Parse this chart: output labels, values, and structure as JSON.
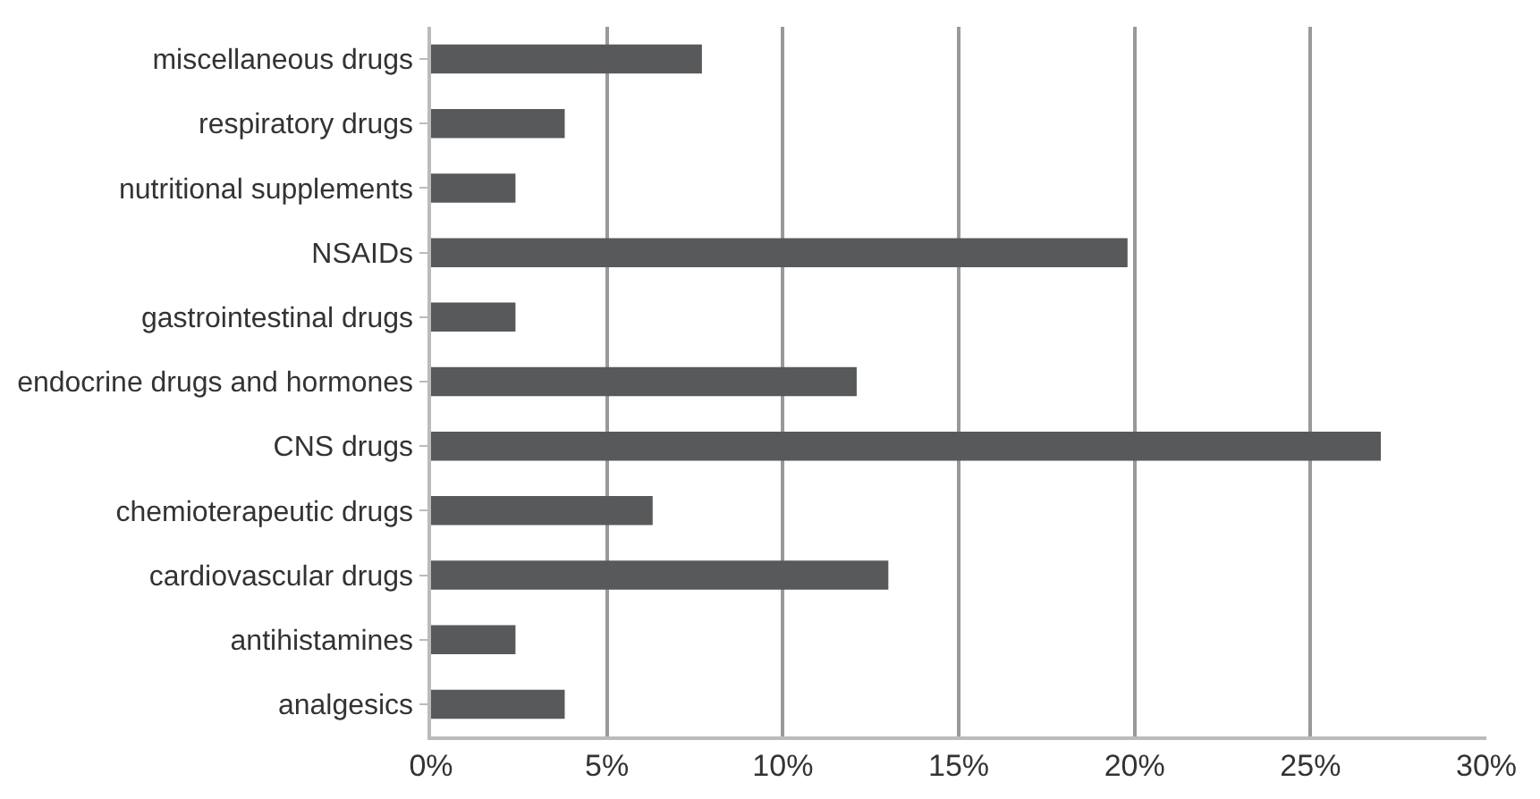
{
  "chart_data": {
    "type": "bar",
    "orientation": "horizontal",
    "categories": [
      "miscellaneous drugs",
      "respiratory drugs",
      "nutritional supplements",
      "NSAIDs",
      "gastrointestinal drugs",
      "endocrine drugs and hormones",
      "CNS drugs",
      "chemioterapeutic drugs",
      "cardiovascular drugs",
      "antihistamines",
      "analgesics"
    ],
    "values": [
      7.7,
      3.8,
      2.4,
      19.8,
      2.4,
      12.1,
      27.0,
      6.3,
      13.0,
      2.4,
      3.8
    ],
    "color": "#58595b",
    "xlim": [
      0,
      30
    ],
    "xticks": [
      {
        "value": 0,
        "label": "0%"
      },
      {
        "value": 5,
        "label": "5%"
      },
      {
        "value": 10,
        "label": "10%"
      },
      {
        "value": 15,
        "label": "15%"
      },
      {
        "value": 20,
        "label": "20%"
      },
      {
        "value": 25,
        "label": "25%"
      },
      {
        "value": 30,
        "label": "30%"
      }
    ],
    "grid": "x",
    "legend": false
  }
}
